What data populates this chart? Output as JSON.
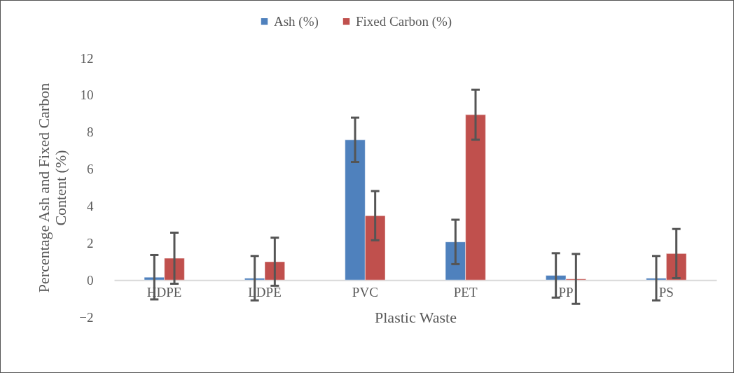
{
  "chart_data": {
    "type": "bar",
    "xlabel": "Plastic Waste",
    "ylabel": "Percentage Ash and Fixed Carbon Content (%)",
    "categories": [
      "HDPE",
      "LDPE",
      "PVC",
      "PET",
      "PP",
      "PS"
    ],
    "series": [
      {
        "name": "Ash (%)",
        "color": "#4f81bd",
        "values": [
          0.15,
          0.1,
          7.58,
          2.06,
          0.25,
          0.1
        ],
        "errors": [
          1.2,
          1.2,
          1.2,
          1.2,
          1.2,
          1.2
        ]
      },
      {
        "name": "Fixed Carbon (%)",
        "color": "#c0504d",
        "values": [
          1.18,
          0.99,
          3.48,
          8.94,
          0.06,
          1.43
        ],
        "errors": [
          1.38,
          1.3,
          1.33,
          1.35,
          1.35,
          1.33
        ]
      }
    ],
    "ylim": [
      -2,
      12
    ],
    "yticks": [
      -2,
      0,
      2,
      4,
      6,
      8,
      10,
      12
    ],
    "grid": false,
    "legend": "top"
  }
}
